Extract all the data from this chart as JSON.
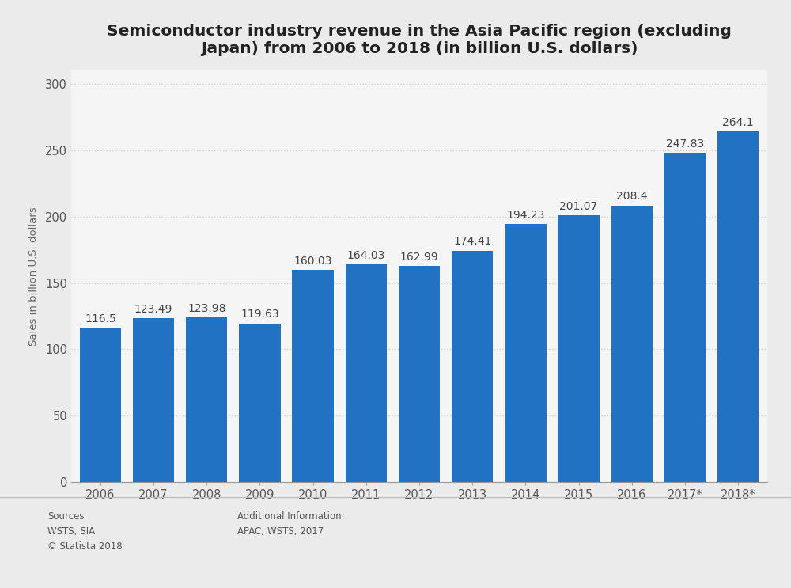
{
  "title": "Semiconductor industry revenue in the Asia Pacific region (excluding\nJapan) from 2006 to 2018 (in billion U.S. dollars)",
  "ylabel": "Sales in billion U.S. dollars",
  "categories": [
    "2006",
    "2007",
    "2008",
    "2009",
    "2010",
    "2011",
    "2012",
    "2013",
    "2014",
    "2015",
    "2016",
    "2017*",
    "2018*"
  ],
  "values": [
    116.5,
    123.49,
    123.98,
    119.63,
    160.03,
    164.03,
    162.99,
    174.41,
    194.23,
    201.07,
    208.4,
    247.83,
    264.1
  ],
  "bar_color": "#2272c3",
  "background_color": "#ebebeb",
  "plot_bg_color": "#f5f5f5",
  "ylim": [
    0,
    310
  ],
  "yticks": [
    0,
    50,
    100,
    150,
    200,
    250,
    300
  ],
  "grid_color": "#d0d0d0",
  "label_fontsize": 10,
  "title_fontsize": 14.5,
  "ylabel_fontsize": 9.5,
  "tick_fontsize": 10.5,
  "sources_text": "Sources\nWSTS; SIA\n© Statista 2018",
  "additional_text": "Additional Information:\nAPAC; WSTS; 2017",
  "footer_fontsize": 8.5,
  "bar_width": 0.78
}
